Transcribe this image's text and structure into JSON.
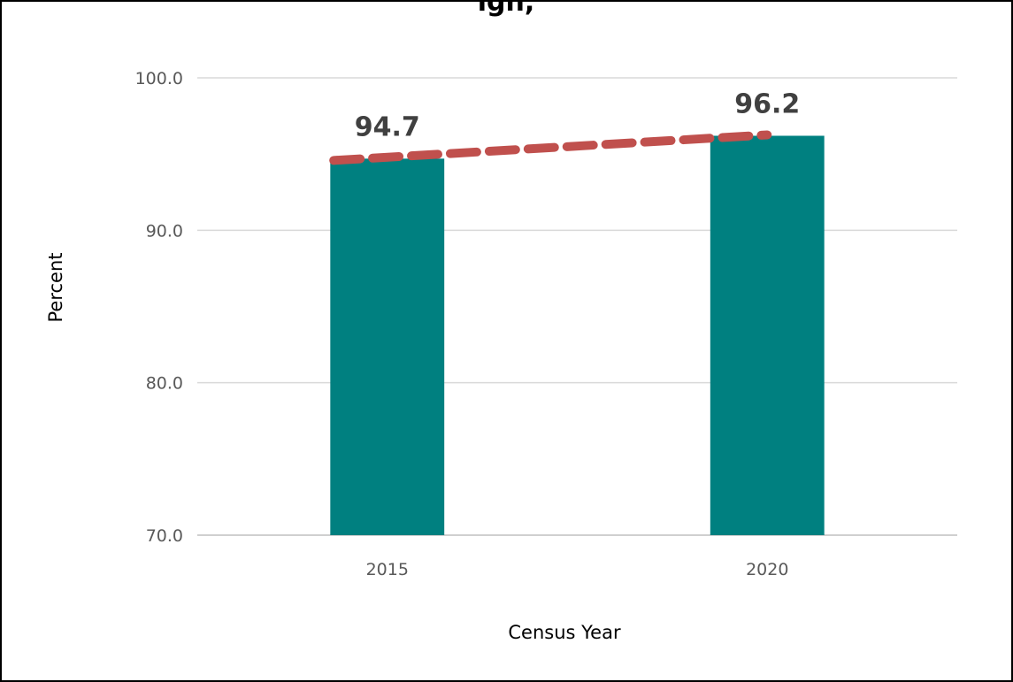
{
  "chart_data": {
    "type": "bar",
    "title": "igh,",
    "xlabel": "Census Year",
    "ylabel": "Percent",
    "categories": [
      "2015",
      "2020"
    ],
    "values": [
      94.7,
      96.2
    ],
    "data_labels": [
      "94.7",
      "96.2"
    ],
    "ylim": [
      70.0,
      100.0
    ],
    "yticks": [
      "70.0",
      "80.0",
      "90.0",
      "100.0"
    ],
    "grid": true,
    "legend": "none",
    "trendline": {
      "style": "dashed",
      "connects": "bar tops"
    },
    "colors": {
      "bar": "#008080",
      "trend": "#C0504D",
      "grid": "#D9D9D9",
      "border": "#000000"
    }
  }
}
